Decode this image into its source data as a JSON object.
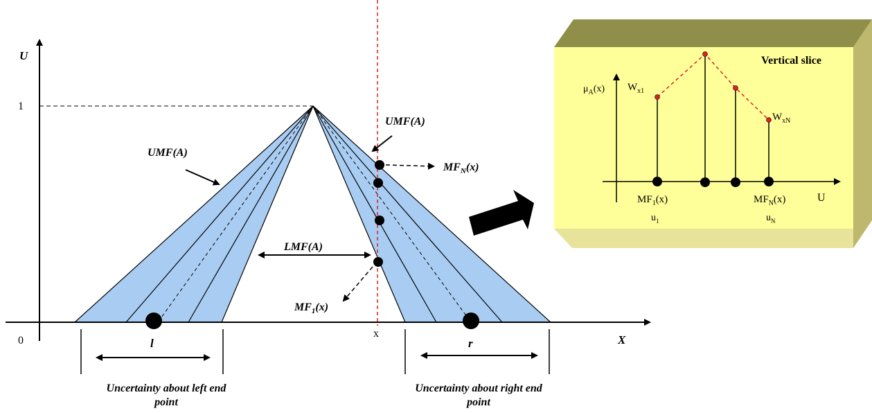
{
  "axes": {
    "y_label": "U",
    "x_label": "X",
    "one_label": "1",
    "origin_label": "0",
    "x_tick_label": "x"
  },
  "main": {
    "umf_left_label": "UMF(A)",
    "umf_right_label": "UMF(A)",
    "lmf_label": "LMF(A)",
    "mfn_label_main": "MF",
    "mfn_label_sub": "N",
    "mfn_label_tail": "(x)",
    "mf1_label_main": "MF",
    "mf1_label_sub": "1",
    "mf1_label_tail": "(x)",
    "l_label": "l",
    "r_label": "r",
    "left_caption_line1": "Uncertainty about left end",
    "left_caption_line2": "point",
    "right_caption_line1": "Uncertainty about right end",
    "right_caption_line2": "point"
  },
  "slice_panel": {
    "title": "Vertical slice",
    "mu_main": "μ",
    "mu_sub": "A",
    "mu_tail": "(x)",
    "wx1_main": "W",
    "wx1_sub": "x1",
    "wxn_main": "W",
    "wxn_sub": "xN",
    "mf1_main": "MF",
    "mf1_sub": "1",
    "mf1_tail": "(x)",
    "mfn_main": "MF",
    "mfn_sub": "N",
    "mfn_tail": "(x)",
    "u1_main": "u",
    "u1_sub": "1",
    "un_main": "u",
    "un_sub": "N",
    "u_axis_label": "U"
  },
  "colors": {
    "band_fill": "#a9cdf2",
    "panel_front": "#ffff99",
    "panel_top": "#8f8f4a",
    "panel_side": "#e8e39a",
    "slice_dashes": "#e02020",
    "vertical_line": "#e02020"
  }
}
